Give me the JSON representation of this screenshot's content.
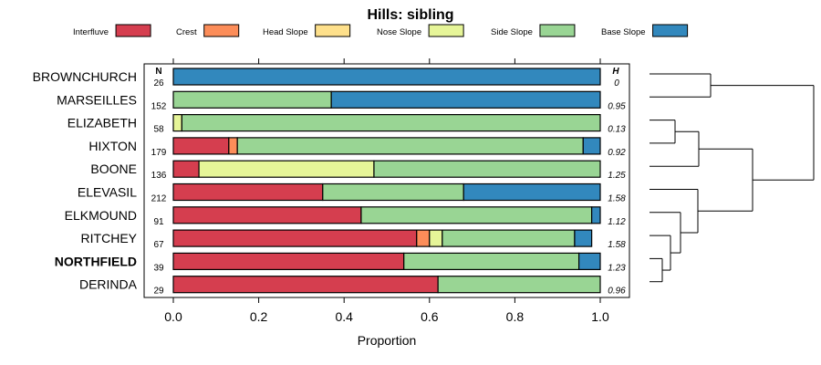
{
  "chart_data": {
    "type": "bar",
    "orientation": "horizontal",
    "stacked": true,
    "title": "Hills: sibling",
    "xlabel": "Proportion",
    "ylabel": "",
    "xlim": [
      0,
      1
    ],
    "xticks": [
      "0.0",
      "0.2",
      "0.4",
      "0.6",
      "0.8",
      "1.0"
    ],
    "n_header": "N",
    "h_header": "H",
    "highlight_category": "NORTHFIELD",
    "legend_position": "top",
    "categories": [
      "BROWNCHURCH",
      "MARSEILLES",
      "ELIZABETH",
      "HIXTON",
      "BOONE",
      "ELEVASIL",
      "ELKMOUND",
      "RITCHEY",
      "NORTHFIELD",
      "DERINDA"
    ],
    "n": [
      "26",
      "152",
      "58",
      "179",
      "136",
      "212",
      "91",
      "67",
      "39",
      "29"
    ],
    "h": [
      "0",
      "0.95",
      "0.13",
      "0.92",
      "1.25",
      "1.58",
      "1.12",
      "1.58",
      "1.23",
      "0.96"
    ],
    "series": [
      {
        "name": "Interfluve",
        "color": "#d53e4f",
        "values": [
          0,
          0,
          0,
          0.13,
          0.06,
          0.35,
          0.44,
          0.57,
          0.54,
          0.62
        ]
      },
      {
        "name": "Crest",
        "color": "#fc8d59",
        "values": [
          0,
          0,
          0,
          0.02,
          0,
          0,
          0,
          0.03,
          0,
          0
        ]
      },
      {
        "name": "Head Slope",
        "color": "#fee08b",
        "values": [
          0,
          0,
          0,
          0,
          0,
          0,
          0,
          0,
          0,
          0
        ]
      },
      {
        "name": "Nose Slope",
        "color": "#e6f598",
        "values": [
          0,
          0,
          0.02,
          0,
          0.41,
          0,
          0,
          0.03,
          0,
          0
        ]
      },
      {
        "name": "Side Slope",
        "color": "#99d594",
        "values": [
          0,
          0.37,
          0.98,
          0.81,
          0.53,
          0.33,
          0.54,
          0.31,
          0.41,
          0.38
        ]
      },
      {
        "name": "Base Slope",
        "color": "#3288bd",
        "values": [
          1,
          0.63,
          0,
          0.04,
          0,
          0.32,
          0.02,
          0.04,
          0.05,
          0
        ]
      }
    ],
    "dendrogram_leaf_order": [
      "BROWNCHURCH",
      "MARSEILLES",
      "ELIZABETH",
      "HIXTON",
      "BOONE",
      "ELEVASIL",
      "ELKMOUND",
      "RITCHEY",
      "NORTHFIELD",
      "DERINDA"
    ]
  }
}
